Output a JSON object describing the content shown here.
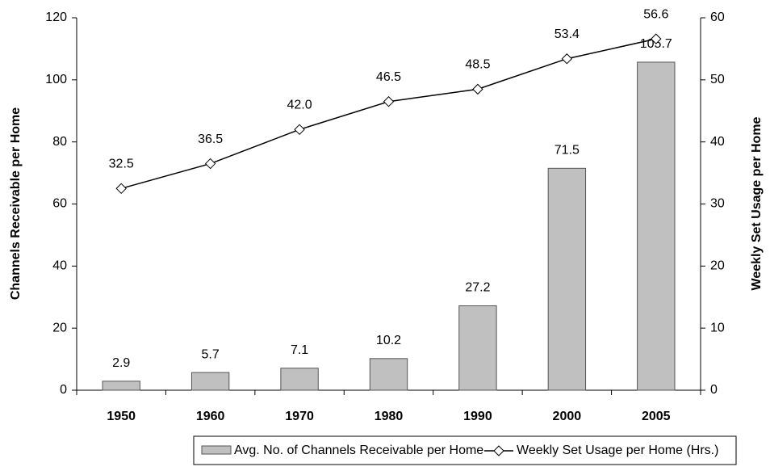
{
  "chart_data": {
    "type": "bar",
    "categories": [
      "1950",
      "1960",
      "1970",
      "1980",
      "1990",
      "2000",
      "2005"
    ],
    "ylabel": "Channels Receivable per Home",
    "y2label": "Weekly Set Usage per Home",
    "ylim": [
      0,
      120
    ],
    "yticks": [
      0,
      20,
      40,
      60,
      80,
      100,
      120
    ],
    "y2lim": [
      0,
      60
    ],
    "y2ticks": [
      0,
      10,
      20,
      30,
      40,
      50,
      60
    ],
    "legend": "bottom",
    "series": [
      {
        "name": "Avg. No. of Channels Receivable per Home",
        "type": "bar",
        "color": "#c0c0c0",
        "values": [
          2.9,
          5.7,
          7.1,
          10.2,
          27.2,
          71.5,
          105.7
        ]
      },
      {
        "name": "Weekly Set Usage per Home (Hrs.)",
        "type": "line",
        "axis": "y2",
        "color": "#000000",
        "values": [
          32.5,
          36.5,
          42.0,
          46.5,
          48.5,
          53.4,
          56.6
        ],
        "value_labels": [
          "32.5",
          "36.5",
          "42.0",
          "46.5",
          "48.5",
          "53.4",
          "56.6"
        ]
      }
    ]
  }
}
